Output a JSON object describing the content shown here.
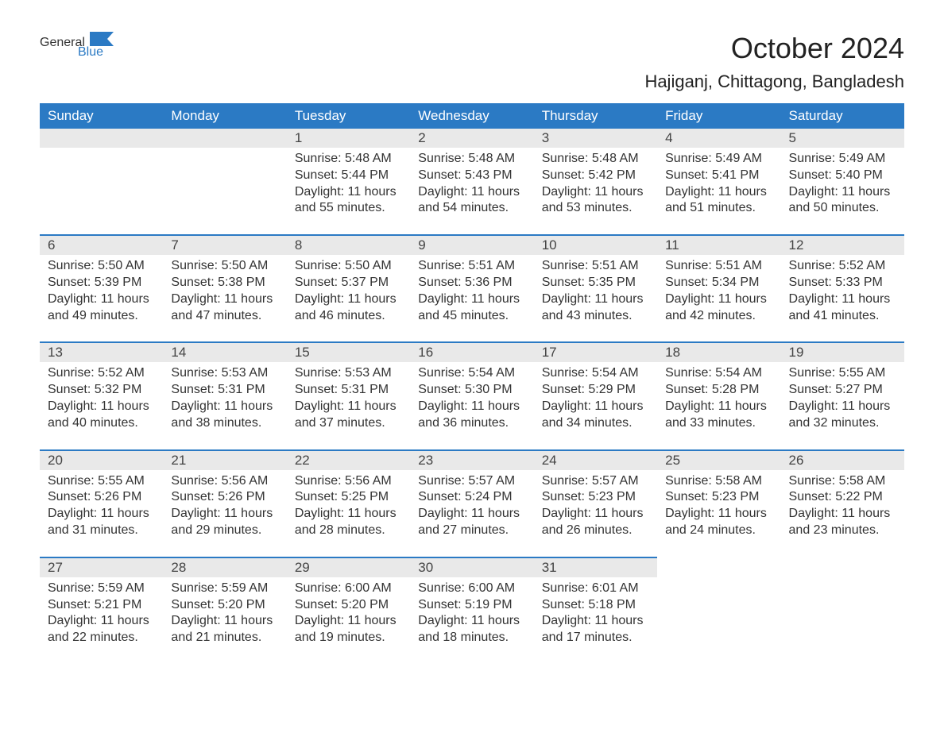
{
  "brand": {
    "part1": "General",
    "part2": "Blue"
  },
  "title": "October 2024",
  "location": "Hajiganj, Chittagong, Bangladesh",
  "colors": {
    "accent": "#2b7ac4",
    "header_bg": "#2b7ac4",
    "header_text": "#ffffff",
    "daynum_bg": "#e9e9e9",
    "daynum_border": "#2b7ac4",
    "text": "#333333",
    "background": "#ffffff"
  },
  "weekdays": [
    "Sunday",
    "Monday",
    "Tuesday",
    "Wednesday",
    "Thursday",
    "Friday",
    "Saturday"
  ],
  "calendar": {
    "first_weekday_index": 2,
    "days_in_month": 31
  },
  "days": {
    "1": {
      "sunrise": "5:48 AM",
      "sunset": "5:44 PM",
      "daylight": "11 hours and 55 minutes."
    },
    "2": {
      "sunrise": "5:48 AM",
      "sunset": "5:43 PM",
      "daylight": "11 hours and 54 minutes."
    },
    "3": {
      "sunrise": "5:48 AM",
      "sunset": "5:42 PM",
      "daylight": "11 hours and 53 minutes."
    },
    "4": {
      "sunrise": "5:49 AM",
      "sunset": "5:41 PM",
      "daylight": "11 hours and 51 minutes."
    },
    "5": {
      "sunrise": "5:49 AM",
      "sunset": "5:40 PM",
      "daylight": "11 hours and 50 minutes."
    },
    "6": {
      "sunrise": "5:50 AM",
      "sunset": "5:39 PM",
      "daylight": "11 hours and 49 minutes."
    },
    "7": {
      "sunrise": "5:50 AM",
      "sunset": "5:38 PM",
      "daylight": "11 hours and 47 minutes."
    },
    "8": {
      "sunrise": "5:50 AM",
      "sunset": "5:37 PM",
      "daylight": "11 hours and 46 minutes."
    },
    "9": {
      "sunrise": "5:51 AM",
      "sunset": "5:36 PM",
      "daylight": "11 hours and 45 minutes."
    },
    "10": {
      "sunrise": "5:51 AM",
      "sunset": "5:35 PM",
      "daylight": "11 hours and 43 minutes."
    },
    "11": {
      "sunrise": "5:51 AM",
      "sunset": "5:34 PM",
      "daylight": "11 hours and 42 minutes."
    },
    "12": {
      "sunrise": "5:52 AM",
      "sunset": "5:33 PM",
      "daylight": "11 hours and 41 minutes."
    },
    "13": {
      "sunrise": "5:52 AM",
      "sunset": "5:32 PM",
      "daylight": "11 hours and 40 minutes."
    },
    "14": {
      "sunrise": "5:53 AM",
      "sunset": "5:31 PM",
      "daylight": "11 hours and 38 minutes."
    },
    "15": {
      "sunrise": "5:53 AM",
      "sunset": "5:31 PM",
      "daylight": "11 hours and 37 minutes."
    },
    "16": {
      "sunrise": "5:54 AM",
      "sunset": "5:30 PM",
      "daylight": "11 hours and 36 minutes."
    },
    "17": {
      "sunrise": "5:54 AM",
      "sunset": "5:29 PM",
      "daylight": "11 hours and 34 minutes."
    },
    "18": {
      "sunrise": "5:54 AM",
      "sunset": "5:28 PM",
      "daylight": "11 hours and 33 minutes."
    },
    "19": {
      "sunrise": "5:55 AM",
      "sunset": "5:27 PM",
      "daylight": "11 hours and 32 minutes."
    },
    "20": {
      "sunrise": "5:55 AM",
      "sunset": "5:26 PM",
      "daylight": "11 hours and 31 minutes."
    },
    "21": {
      "sunrise": "5:56 AM",
      "sunset": "5:26 PM",
      "daylight": "11 hours and 29 minutes."
    },
    "22": {
      "sunrise": "5:56 AM",
      "sunset": "5:25 PM",
      "daylight": "11 hours and 28 minutes."
    },
    "23": {
      "sunrise": "5:57 AM",
      "sunset": "5:24 PM",
      "daylight": "11 hours and 27 minutes."
    },
    "24": {
      "sunrise": "5:57 AM",
      "sunset": "5:23 PM",
      "daylight": "11 hours and 26 minutes."
    },
    "25": {
      "sunrise": "5:58 AM",
      "sunset": "5:23 PM",
      "daylight": "11 hours and 24 minutes."
    },
    "26": {
      "sunrise": "5:58 AM",
      "sunset": "5:22 PM",
      "daylight": "11 hours and 23 minutes."
    },
    "27": {
      "sunrise": "5:59 AM",
      "sunset": "5:21 PM",
      "daylight": "11 hours and 22 minutes."
    },
    "28": {
      "sunrise": "5:59 AM",
      "sunset": "5:20 PM",
      "daylight": "11 hours and 21 minutes."
    },
    "29": {
      "sunrise": "6:00 AM",
      "sunset": "5:20 PM",
      "daylight": "11 hours and 19 minutes."
    },
    "30": {
      "sunrise": "6:00 AM",
      "sunset": "5:19 PM",
      "daylight": "11 hours and 18 minutes."
    },
    "31": {
      "sunrise": "6:01 AM",
      "sunset": "5:18 PM",
      "daylight": "11 hours and 17 minutes."
    }
  },
  "labels": {
    "sunrise": "Sunrise:",
    "sunset": "Sunset:",
    "daylight": "Daylight:"
  },
  "typography": {
    "title_fontsize": 36,
    "location_fontsize": 22,
    "header_fontsize": 17,
    "daynum_fontsize": 17,
    "body_fontsize": 16
  }
}
